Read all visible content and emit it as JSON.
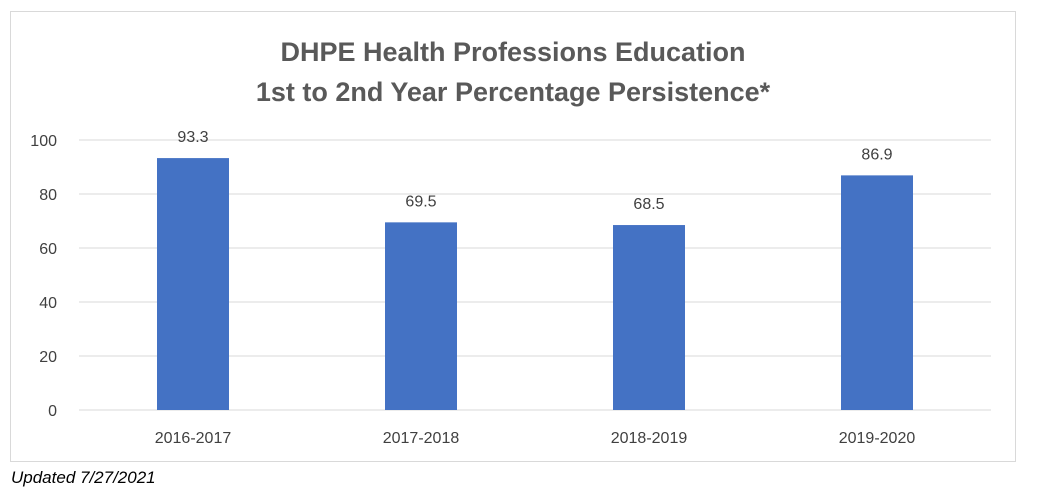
{
  "chart_data": {
    "type": "bar",
    "title_lines": [
      "DHPE Health Professions Education",
      "1st to 2nd Year Percentage Persistence*"
    ],
    "categories": [
      "2016-2017",
      "2017-2018",
      "2018-2019",
      "2019-2020"
    ],
    "values": [
      93.3,
      69.5,
      68.5,
      86.9
    ],
    "value_labels": [
      "93.3",
      "69.5",
      "68.5",
      "86.9"
    ],
    "y_ticks": [
      0,
      20,
      40,
      60,
      80,
      100
    ],
    "ylim": [
      0,
      100
    ],
    "xlabel": "",
    "ylabel": "",
    "grid": true,
    "legend": "none",
    "bar_color": "#4472c4",
    "grid_color": "#d9d9d9"
  },
  "footnote": "Updated 7/27/2021"
}
